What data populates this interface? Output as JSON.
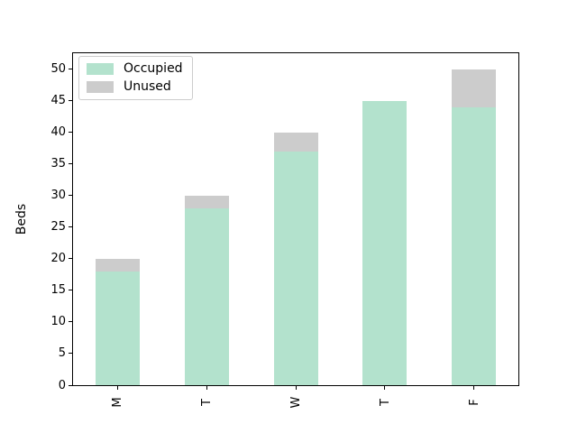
{
  "chart_data": {
    "type": "bar",
    "stacked": true,
    "title": "",
    "xlabel": "",
    "ylabel": "Beds",
    "categories": [
      "M",
      "T",
      "W",
      "T",
      "F"
    ],
    "series": [
      {
        "name": "Occupied",
        "color": "#b3e2cd",
        "values": [
          18,
          28,
          37,
          45,
          44
        ]
      },
      {
        "name": "Unused",
        "color": "#cccccc",
        "values": [
          2,
          2,
          3,
          0,
          6
        ]
      }
    ],
    "totals": [
      20,
      30,
      40,
      45,
      50
    ],
    "ylim": [
      0,
      52.5
    ],
    "yticks": [
      0,
      5,
      10,
      15,
      20,
      25,
      30,
      35,
      40,
      45,
      50
    ],
    "bar_width_fraction": 0.5,
    "grid": false,
    "legend_position": "upper left",
    "xtick_rotation_deg": 90,
    "axis_color": "#000000",
    "background_color": "#ffffff",
    "legend_border_color": "#cccccc"
  }
}
